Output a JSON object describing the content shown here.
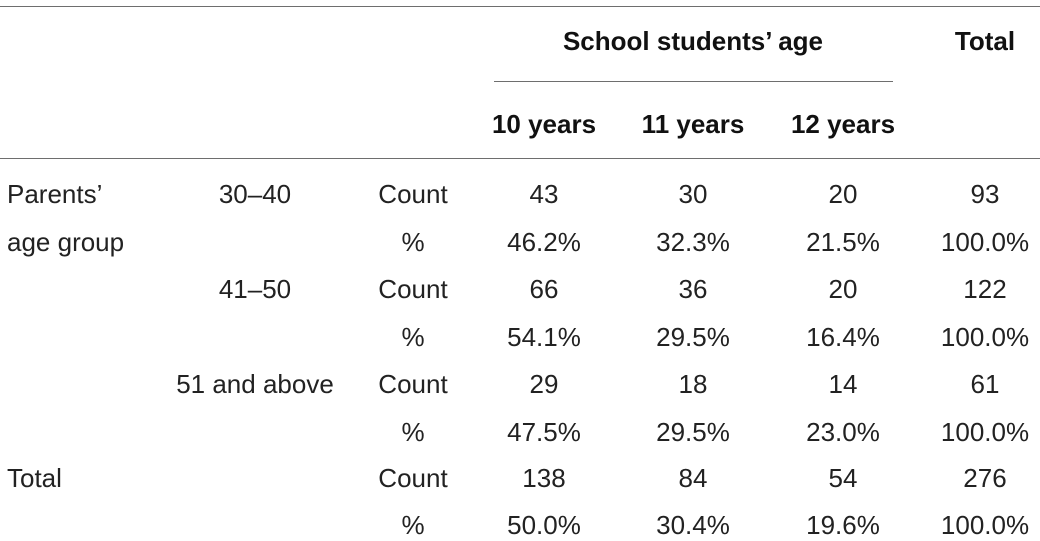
{
  "table": {
    "header": {
      "group_label": "School students’ age",
      "total_label": "Total",
      "age_columns": [
        "10 years",
        "11 years",
        "12 years"
      ]
    },
    "row_group_label_line1": "Parents’",
    "row_group_label_line2": "age group",
    "total_row_label": "Total",
    "groups": [
      {
        "label": "30–40",
        "count": {
          "label": "Count",
          "values": [
            "43",
            "30",
            "20"
          ],
          "total": "93"
        },
        "percent": {
          "label": "%",
          "values": [
            "46.2%",
            "32.3%",
            "21.5%"
          ],
          "total": "100.0%"
        }
      },
      {
        "label": "41–50",
        "count": {
          "label": "Count",
          "values": [
            "66",
            "36",
            "20"
          ],
          "total": "122"
        },
        "percent": {
          "label": "%",
          "values": [
            "54.1%",
            "29.5%",
            "16.4%"
          ],
          "total": "100.0%"
        }
      },
      {
        "label": "51 and above",
        "count": {
          "label": "Count",
          "values": [
            "29",
            "18",
            "14"
          ],
          "total": "61"
        },
        "percent": {
          "label": "%",
          "values": [
            "47.5%",
            "29.5%",
            "23.0%"
          ],
          "total": "100.0%"
        }
      }
    ],
    "total": {
      "count": {
        "label": "Count",
        "values": [
          "138",
          "84",
          "54"
        ],
        "total": "276"
      },
      "percent": {
        "label": "%",
        "values": [
          "50.0%",
          "30.4%",
          "19.6%"
        ],
        "total": "100.0%"
      }
    }
  }
}
